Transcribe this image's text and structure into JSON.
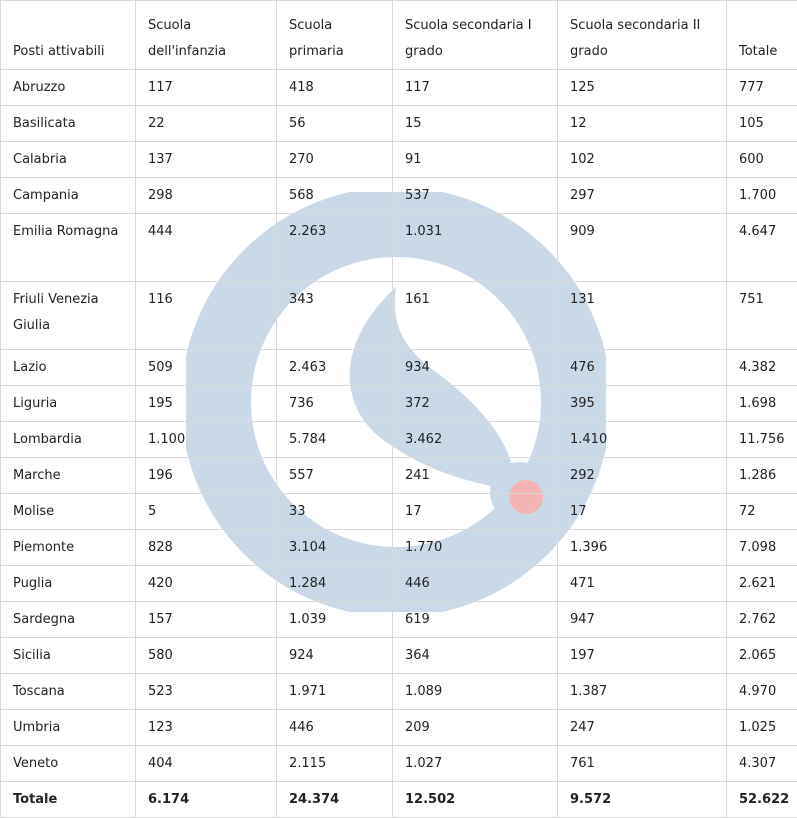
{
  "table": {
    "headers": [
      "Posti attivabili",
      "Scuola dell'infanzia",
      "Scuola primaria",
      "Scuola secondaria I grado",
      "Scuola secondaria II grado",
      "Totale"
    ],
    "rows": [
      [
        "Abruzzo",
        "117",
        "418",
        "117",
        "125",
        "777"
      ],
      [
        "Basilicata",
        "22",
        "56",
        "15",
        "12",
        "105"
      ],
      [
        "Calabria",
        "137",
        "270",
        "91",
        "102",
        "600"
      ],
      [
        "Campania",
        "298",
        "568",
        "537",
        "297",
        "1.700"
      ],
      [
        "Emilia Romagna",
        "444",
        "2.263",
        "1.031",
        "909",
        "4.647"
      ],
      [
        "Friuli Venezia Giulia",
        "116",
        "343",
        "161",
        "131",
        "751"
      ],
      [
        "Lazio",
        "509",
        "2.463",
        "934",
        "476",
        "4.382"
      ],
      [
        "Liguria",
        "195",
        "736",
        "372",
        "395",
        "1.698"
      ],
      [
        "Lombardia",
        "1.100",
        "5.784",
        "3.462",
        "1.410",
        "11.756"
      ],
      [
        "Marche",
        "196",
        "557",
        "241",
        "292",
        "1.286"
      ],
      [
        "Molise",
        "5",
        "33",
        "17",
        "17",
        "72"
      ],
      [
        "Piemonte",
        "828",
        "3.104",
        "1.770",
        "1.396",
        "7.098"
      ],
      [
        "Puglia",
        "420",
        "1.284",
        "446",
        "471",
        "2.621"
      ],
      [
        "Sardegna",
        "157",
        "1.039",
        "619",
        "947",
        "2.762"
      ],
      [
        "Sicilia",
        "580",
        "924",
        "364",
        "197",
        "2.065"
      ],
      [
        "Toscana",
        "523",
        "1.971",
        "1.089",
        "1.387",
        "4.970"
      ],
      [
        "Umbria",
        "123",
        "446",
        "209",
        "247",
        "1.025"
      ],
      [
        "Veneto",
        "404",
        "2.115",
        "1.027",
        "761",
        "4.307"
      ]
    ],
    "totals": [
      "Totale",
      "6.174",
      "24.374",
      "12.502",
      "9.572",
      "52.622"
    ]
  },
  "watermark": {
    "icon": "logo-watermark-icon",
    "color": "#c9d9e8",
    "accent": "#f4b4b4"
  }
}
